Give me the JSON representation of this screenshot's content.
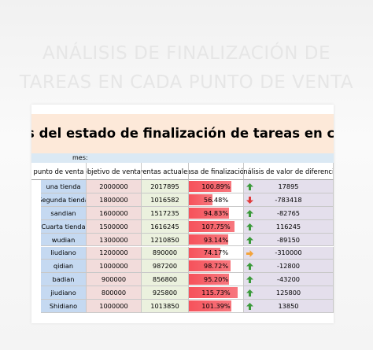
{
  "header": {
    "title_line1": "ANÁLISIS DE FINALIZACIÓN DE",
    "title_line2": "TAREAS EN CADA PUNTO DE VENTA"
  },
  "sheet": {
    "banner": "s del estado de finalización de tareas en cada punto de",
    "month_label": "mes:",
    "columns": [
      "punto de venta",
      "objetivo de ventas",
      "ventas actuales",
      "Tasa de finalización",
      "Análisis de valor de diferencia"
    ],
    "rows": [
      [
        "una tienda",
        "2000000",
        "2017895",
        "100.89%",
        "17895"
      ],
      [
        "Segunda tienda",
        "1800000",
        "1016582",
        "56.48%",
        "-783418"
      ],
      [
        "sandian",
        "1600000",
        "1517235",
        "94.83%",
        "-82765"
      ],
      [
        "Cuarta tienda",
        "1500000",
        "1616245",
        "107.75%",
        "116245"
      ],
      [
        "wudian",
        "1300000",
        "1210850",
        "93.14%",
        "-89150"
      ],
      [
        "liudiano",
        "1200000",
        "890000",
        "74.17%",
        "-310000"
      ],
      [
        "qidian",
        "1000000",
        "987200",
        "98.72%",
        "-12800"
      ],
      [
        "badian",
        "900000",
        "856800",
        "95.20%",
        "-43200"
      ],
      [
        "jiudiano",
        "800000",
        "925800",
        "115.73%",
        "125800"
      ],
      [
        "Shidiano",
        "1000000",
        "1013850",
        "101.39%",
        "13850"
      ]
    ]
  }
}
